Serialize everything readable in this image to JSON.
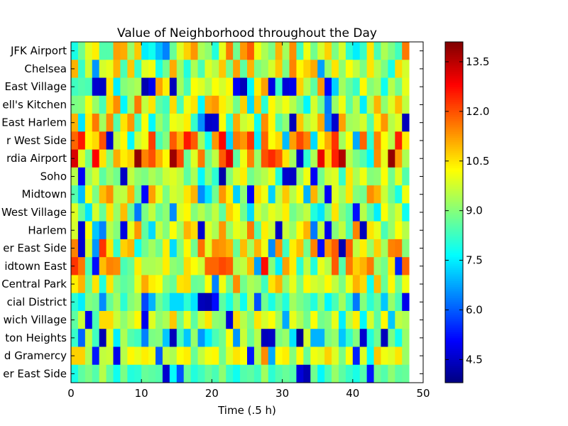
{
  "chart_data": {
    "type": "heatmap",
    "title": "Value of Neighborhood throughout the Day",
    "xlabel": "Time (.5 h)",
    "ylabel": "",
    "xlim": [
      0,
      50
    ],
    "x_ticks": [
      0,
      10,
      20,
      30,
      40,
      50
    ],
    "x_tick_labels": [
      "0",
      "10",
      "20",
      "30",
      "40",
      "50"
    ],
    "n_columns": 48,
    "y_labels_top_to_bottom": [
      "JFK Airport",
      "Chelsea",
      "East Village",
      "ell's Kitchen",
      "East Harlem",
      "r West Side",
      "rdia Airport",
      "Soho",
      "Midtown",
      "West Village",
      "Harlem",
      "er East Side",
      "idtown East",
      "Central Park",
      "cial District",
      "wich Village",
      "ton Heights",
      "d Gramercy",
      "er East Side"
    ],
    "colorbar": {
      "colormap": "jet",
      "min": 3.8,
      "max": 14.1,
      "ticks": [
        4.5,
        6.0,
        7.5,
        9.0,
        10.5,
        12.0,
        13.5
      ],
      "tick_labels": [
        "4.5",
        "6.0",
        "7.5",
        "9.0",
        "10.5",
        "12.0",
        "13.5"
      ]
    },
    "values": [
      [
        7.9,
        8.8,
        9.9,
        10.4,
        8.5,
        8.5,
        11.2,
        11.1,
        9.2,
        10.8,
        7.5,
        7.8,
        7.0,
        6.4,
        8.7,
        9.9,
        10.7,
        11.3,
        9.4,
        9.1,
        8.0,
        10.0,
        11.6,
        8.8,
        11.3,
        11.9,
        10.1,
        9.4,
        8.9,
        11.0,
        9.3,
        11.4,
        8.3,
        10.1,
        8.8,
        9.8,
        10.7,
        8.9,
        9.8,
        8.1,
        7.5,
        8.2,
        10.5,
        8.4,
        9.4,
        8.9,
        8.3,
        11.6
      ],
      [
        11.0,
        8.2,
        9.7,
        6.6,
        9.8,
        10.0,
        11.0,
        8.4,
        10.8,
        8.2,
        9.9,
        10.1,
        7.9,
        8.8,
        11.1,
        9.2,
        8.0,
        9.4,
        8.4,
        9.9,
        9.5,
        10.8,
        8.8,
        11.2,
        8.6,
        11.0,
        8.9,
        9.2,
        9.8,
        10.8,
        8.9,
        11.5,
        10.3,
        10.7,
        11.1,
        6.7,
        9.2,
        10.5,
        9.1,
        10.2,
        9.6,
        8.9,
        10.5,
        9.5,
        8.9,
        7.9,
        10.6,
        9.8
      ],
      [
        8.3,
        8.5,
        8.4,
        4.6,
        4.5,
        10.5,
        7.5,
        9.0,
        9.2,
        9.4,
        4.3,
        4.9,
        11.2,
        10.4,
        4.4,
        9.3,
        8.4,
        10.2,
        9.9,
        9.4,
        10.2,
        9.8,
        10.3,
        5.0,
        4.4,
        7.6,
        10.4,
        11.2,
        4.8,
        8.2,
        4.7,
        4.9,
        10.7,
        9.5,
        8.6,
        11.3,
        5.1,
        7.2,
        9.3,
        8.7,
        8.2,
        10.3,
        9.0,
        9.3,
        7.8,
        9.5,
        8.8,
        10.0
      ],
      [
        8.9,
        9.0,
        10.1,
        9.2,
        8.4,
        10.6,
        11.4,
        7.6,
        9.3,
        11.6,
        9.6,
        10.5,
        8.6,
        8.3,
        10.6,
        8.4,
        10.1,
        10.5,
        7.6,
        11.1,
        11.3,
        10.4,
        9.8,
        8.8,
        10.7,
        7.3,
        10.8,
        8.1,
        10.3,
        9.6,
        10.1,
        9.5,
        8.8,
        7.6,
        9.8,
        8.8,
        6.3,
        9.2,
        10.1,
        8.6,
        9.5,
        7.5,
        9.5,
        11.0,
        9.1,
        9.9,
        10.9,
        9.6
      ],
      [
        11.0,
        7.4,
        10.4,
        11.6,
        9.3,
        11.4,
        8.5,
        10.5,
        11.3,
        8.4,
        10.2,
        7.6,
        9.2,
        8.6,
        10.1,
        9.9,
        10.4,
        8.2,
        6.5,
        4.5,
        4.6,
        10.2,
        8.1,
        11.1,
        9.7,
        10.0,
        7.8,
        11.4,
        10.3,
        8.5,
        9.1,
        4.4,
        10.8,
        9.5,
        9.9,
        11.1,
        6.4,
        4.6,
        11.2,
        9.3,
        9.4,
        9.8,
        8.5,
        10.4,
        11.3,
        9.5,
        9.9,
        4.4
      ],
      [
        11.8,
        12.6,
        10.3,
        10.6,
        12.0,
        4.6,
        9.6,
        10.3,
        7.6,
        9.7,
        10.1,
        12.2,
        8.4,
        9.0,
        11.9,
        11.0,
        12.6,
        11.9,
        9.3,
        7.8,
        11.3,
        12.8,
        7.2,
        11.6,
        11.3,
        12.3,
        7.5,
        11.8,
        10.2,
        10.6,
        7.0,
        11.2,
        12.1,
        11.5,
        7.3,
        10.3,
        11.1,
        12.3,
        9.3,
        10.2,
        6.8,
        11.8,
        8.1,
        11.5,
        10.2,
        9.5,
        12.5,
        10.4
      ],
      [
        13.2,
        9.9,
        8.8,
        12.8,
        10.5,
        9.0,
        11.1,
        10.4,
        10.7,
        13.9,
        11.5,
        12.0,
        11.0,
        10.3,
        13.8,
        12.1,
        8.7,
        9.9,
        11.6,
        8.8,
        9.6,
        11.9,
        13.1,
        8.6,
        10.1,
        11.5,
        9.2,
        12.0,
        12.4,
        11.9,
        10.5,
        9.3,
        4.6,
        8.1,
        9.4,
        13.0,
        10.7,
        12.5,
        13.6,
        9.5,
        8.9,
        8.5,
        7.6,
        11.4,
        10.0,
        13.9,
        11.2,
        9.4
      ],
      [
        9.5,
        5.0,
        9.2,
        9.8,
        8.6,
        9.2,
        8.8,
        4.5,
        9.6,
        9.1,
        8.9,
        9.4,
        9.1,
        9.7,
        9.9,
        9.6,
        8.6,
        9.4,
        7.6,
        9.0,
        8.1,
        4.2,
        9.0,
        9.8,
        10.4,
        8.8,
        9.2,
        9.5,
        10.0,
        8.0,
        4.6,
        4.5,
        9.2,
        10.1,
        5.0,
        8.8,
        9.7,
        9.9,
        8.2,
        10.5,
        9.4,
        10.1,
        9.0,
        9.1,
        10.2,
        8.8,
        9.9,
        8.5
      ],
      [
        8.5,
        7.0,
        10.1,
        8.9,
        10.9,
        11.4,
        9.5,
        9.6,
        11.0,
        8.8,
        5.1,
        11.2,
        10.0,
        8.9,
        9.8,
        9.6,
        10.5,
        11.0,
        6.5,
        7.4,
        8.8,
        11.3,
        10.4,
        7.2,
        9.1,
        5.0,
        10.6,
        10.1,
        7.2,
        9.6,
        10.8,
        9.5,
        10.2,
        6.9,
        11.0,
        9.2,
        5.0,
        9.9,
        9.3,
        10.5,
        9.0,
        8.8,
        11.4,
        11.0,
        9.7,
        8.8,
        7.9,
        10.1
      ],
      [
        9.9,
        8.7,
        7.4,
        9.8,
        8.7,
        10.5,
        9.2,
        10.9,
        8.7,
        6.3,
        8.9,
        9.6,
        8.7,
        9.1,
        6.5,
        9.9,
        10.3,
        9.0,
        9.5,
        9.0,
        9.6,
        8.6,
        10.7,
        10.2,
        8.8,
        7.3,
        9.8,
        9.3,
        10.0,
        9.7,
        10.4,
        8.8,
        9.2,
        9.6,
        8.0,
        7.4,
        8.9,
        10.5,
        9.0,
        8.5,
        5.2,
        9.5,
        8.6,
        7.5,
        10.2,
        9.2,
        9.8,
        7.8
      ],
      [
        9.8,
        4.6,
        10.2,
        7.1,
        6.4,
        9.5,
        9.0,
        4.8,
        10.0,
        11.3,
        8.6,
        7.3,
        9.6,
        9.0,
        10.2,
        9.3,
        11.0,
        10.6,
        4.6,
        9.9,
        9.4,
        11.3,
        9.2,
        10.0,
        9.7,
        11.6,
        8.5,
        10.4,
        9.7,
        4.5,
        9.7,
        9.2,
        10.3,
        11.0,
        6.3,
        9.6,
        4.9,
        9.0,
        9.6,
        8.4,
        11.5,
        4.4,
        10.5,
        10.0,
        8.4,
        9.2,
        10.2,
        9.5
      ],
      [
        11.5,
        4.6,
        9.8,
        6.6,
        12.3,
        10.5,
        8.2,
        10.7,
        11.0,
        7.8,
        8.8,
        9.3,
        8.8,
        10.4,
        7.3,
        9.0,
        10.3,
        8.8,
        11.7,
        9.9,
        11.4,
        11.3,
        11.0,
        8.7,
        10.9,
        9.3,
        11.0,
        10.1,
        6.5,
        11.4,
        8.3,
        10.4,
        10.9,
        8.8,
        11.5,
        5.2,
        11.3,
        11.9,
        4.3,
        11.9,
        9.6,
        10.4,
        9.2,
        10.7,
        9.3,
        11.5,
        11.6,
        9.0
      ],
      [
        12.3,
        11.6,
        8.4,
        5.2,
        10.9,
        11.5,
        11.4,
        8.4,
        8.7,
        10.4,
        9.4,
        9.4,
        9.5,
        10.4,
        9.1,
        8.9,
        10.6,
        10.2,
        9.7,
        11.8,
        11.8,
        12.1,
        11.9,
        9.4,
        9.6,
        10.9,
        6.7,
        12.7,
        9.0,
        7.5,
        11.2,
        10.4,
        8.1,
        9.6,
        8.0,
        10.0,
        9.5,
        11.9,
        8.5,
        11.6,
        10.7,
        11.0,
        11.6,
        9.2,
        8.8,
        10.5,
        5.4,
        11.8
      ],
      [
        10.4,
        11.0,
        8.7,
        10.5,
        8.0,
        10.5,
        9.0,
        8.6,
        8.8,
        10.0,
        11.1,
        10.4,
        10.2,
        9.0,
        8.7,
        10.5,
        10.6,
        8.7,
        8.8,
        10.2,
        6.4,
        10.1,
        8.8,
        11.4,
        8.8,
        9.4,
        9.2,
        8.3,
        10.5,
        11.0,
        9.1,
        10.0,
        8.9,
        10.3,
        9.8,
        9.6,
        10.3,
        9.6,
        8.9,
        10.1,
        11.0,
        10.6,
        7.8,
        10.9,
        8.7,
        10.3,
        8.8,
        10.1
      ],
      [
        8.1,
        7.5,
        9.0,
        8.8,
        6.5,
        8.7,
        9.3,
        8.1,
        9.0,
        9.3,
        5.8,
        6.9,
        8.8,
        8.3,
        7.3,
        7.3,
        8.1,
        7.4,
        4.4,
        4.3,
        5.2,
        8.6,
        7.9,
        9.0,
        7.8,
        9.5,
        5.9,
        8.8,
        7.9,
        8.7,
        8.0,
        9.3,
        8.9,
        8.6,
        8.0,
        9.1,
        7.6,
        8.4,
        9.3,
        8.2,
        6.3,
        9.0,
        8.1,
        8.7,
        7.1,
        9.2,
        8.4,
        4.9
      ],
      [
        8.6,
        9.7,
        4.9,
        8.4,
        10.6,
        10.6,
        9.7,
        9.1,
        9.6,
        10.3,
        4.9,
        9.9,
        9.1,
        9.4,
        10.8,
        8.8,
        10.0,
        8.6,
        9.7,
        10.5,
        9.1,
        9.0,
        4.7,
        10.6,
        9.5,
        8.9,
        10.5,
        9.8,
        10.2,
        9.3,
        6.8,
        10.0,
        9.4,
        8.8,
        10.2,
        8.8,
        9.0,
        10.0,
        7.5,
        9.5,
        10.4,
        7.6,
        9.8,
        8.6,
        10.3,
        7.1,
        9.6,
        9.4
      ],
      [
        8.2,
        6.1,
        9.6,
        8.3,
        4.3,
        9.9,
        7.5,
        9.4,
        8.5,
        8.3,
        6.4,
        8.9,
        9.0,
        7.1,
        4.4,
        8.4,
        7.1,
        9.2,
        6.6,
        7.5,
        8.4,
        8.8,
        10.2,
        6.6,
        9.7,
        8.7,
        9.5,
        4.4,
        4.5,
        8.9,
        9.2,
        7.4,
        4.0,
        9.8,
        6.9,
        6.9,
        8.9,
        9.2,
        7.1,
        8.2,
        9.0,
        4.6,
        8.0,
        8.8,
        4.4,
        8.9,
        7.8,
        9.2
      ],
      [
        10.7,
        10.7,
        9.4,
        5.3,
        9.6,
        9.7,
        4.9,
        9.5,
        10.3,
        10.0,
        10.4,
        10.1,
        6.0,
        9.6,
        9.4,
        10.2,
        10.4,
        8.7,
        9.6,
        10.1,
        10.3,
        8.8,
        9.9,
        10.5,
        10.2,
        5.3,
        9.4,
        11.4,
        6.8,
        10.2,
        10.4,
        9.0,
        10.3,
        8.7,
        10.1,
        9.9,
        10.7,
        9.9,
        8.9,
        10.2,
        5.4,
        9.9,
        7.7,
        10.8,
        10.1,
        9.9,
        10.5,
        9.2
      ],
      [
        7.9,
        8.6,
        8.9,
        8.5,
        9.5,
        8.6,
        7.8,
        8.9,
        8.0,
        8.1,
        8.7,
        8.6,
        8.5,
        4.6,
        7.7,
        5.9,
        8.7,
        8.0,
        8.3,
        8.7,
        8.4,
        9.1,
        8.2,
        7.8,
        8.5,
        8.6,
        8.3,
        9.3,
        8.1,
        8.5,
        8.7,
        8.5,
        4.7,
        4.3,
        8.8,
        7.6,
        8.4,
        9.2,
        8.6,
        8.2,
        7.9,
        8.5,
        5.3,
        8.8,
        8.5,
        9.1,
        8.6,
        8.7
      ]
    ]
  }
}
